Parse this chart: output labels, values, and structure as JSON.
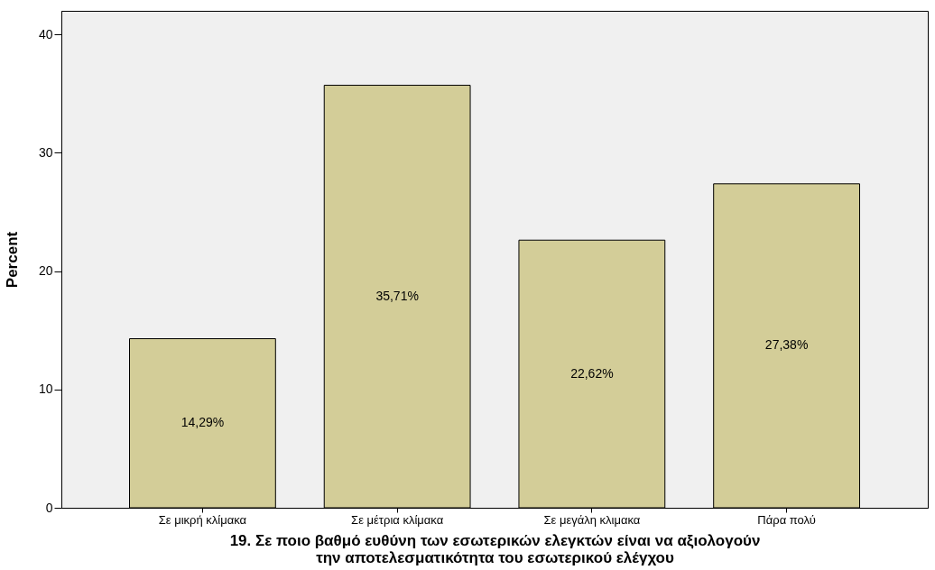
{
  "chart_data": {
    "type": "bar",
    "xlabel": "19. Σε ποιο βαθμό ευθύνη των εσωτερικών ελεγκτών είναι να αξιολογούν\nτην αποτελεσματικότητα του εσωτερικού ελέγχου",
    "ylabel": "Percent",
    "categories": [
      "Σε μικρή κλίμακα",
      "Σε μέτρια κλίμακα",
      "Σε μεγάλη κλιμακα",
      "Πάρα πολύ"
    ],
    "values": [
      14.29,
      35.71,
      22.62,
      27.38
    ],
    "value_labels": [
      "14,29%",
      "35,71%",
      "22,62%",
      "27,38%"
    ],
    "color": "#d3cd98",
    "ylim": [
      0,
      42
    ],
    "yticks": [
      0,
      10,
      20,
      30,
      40
    ],
    "grid": false
  }
}
